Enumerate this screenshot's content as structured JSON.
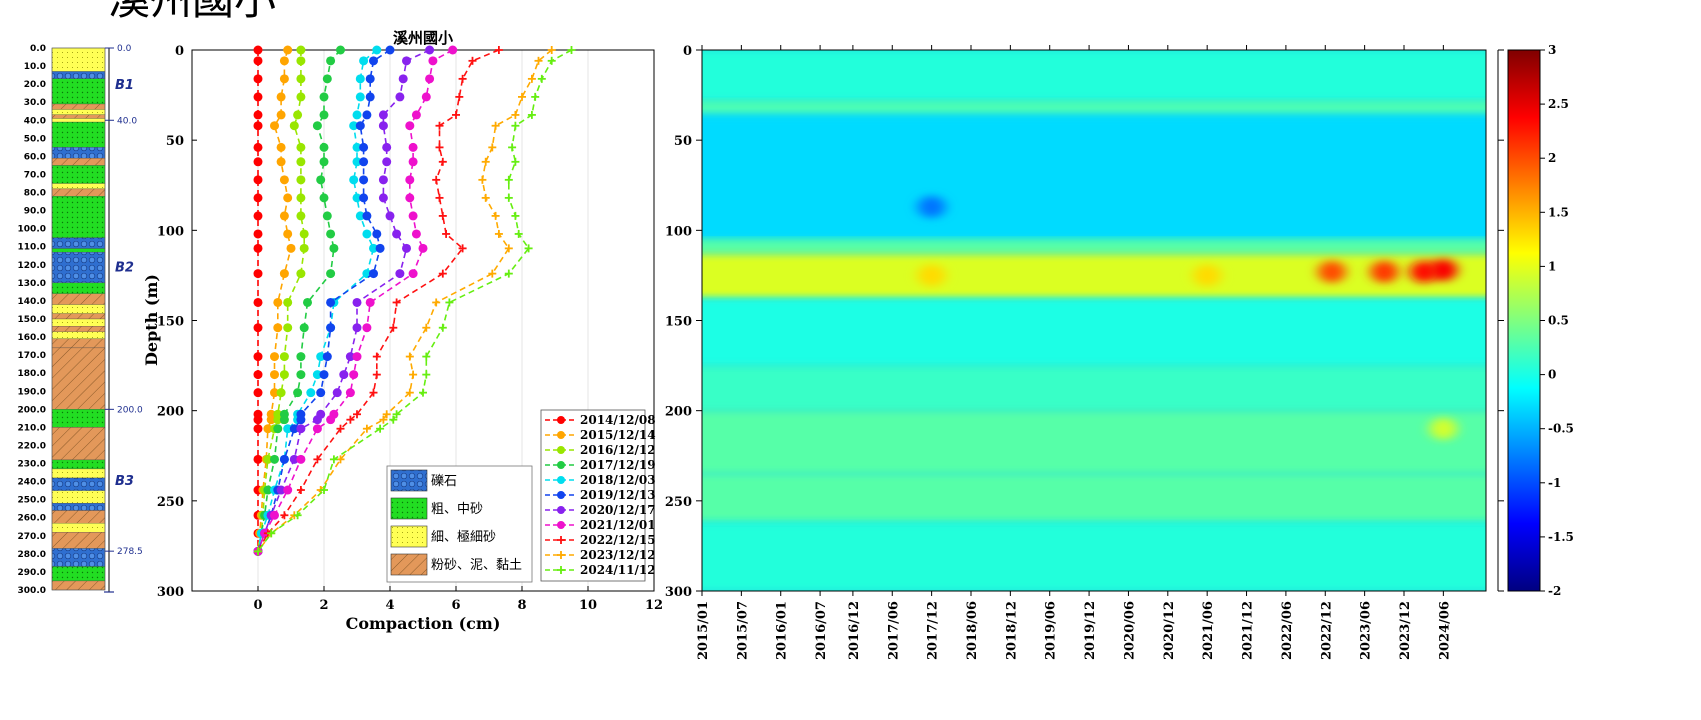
{
  "page_title": "溪州國小",
  "chart_data": [
    {
      "type": "strip_log",
      "name": "borehole-lithology",
      "depth_ticks": [
        "0.0",
        "10.0",
        "20.0",
        "30.0",
        "40.0",
        "50.0",
        "60.0",
        "70.0",
        "80.0",
        "90.0",
        "100.0",
        "110.0",
        "120.0",
        "130.0",
        "140.0",
        "150.0",
        "160.0",
        "170.0",
        "180.0",
        "190.0",
        "200.0",
        "210.0",
        "220.0",
        "230.0",
        "240.0",
        "250.0",
        "260.0",
        "270.0",
        "280.0",
        "290.0",
        "300.0"
      ],
      "depth_range": [
        0,
        300
      ],
      "layers": [
        {
          "top": 0,
          "bottom": 13,
          "lith": "fine"
        },
        {
          "top": 13,
          "bottom": 17,
          "lith": "gravel"
        },
        {
          "top": 17,
          "bottom": 31,
          "lith": "coarse"
        },
        {
          "top": 31,
          "bottom": 34,
          "lith": "silt"
        },
        {
          "top": 34,
          "bottom": 37,
          "lith": "fine"
        },
        {
          "top": 37,
          "bottom": 39,
          "lith": "silt"
        },
        {
          "top": 39,
          "bottom": 41,
          "lith": "fine"
        },
        {
          "top": 41,
          "bottom": 55,
          "lith": "coarse"
        },
        {
          "top": 55,
          "bottom": 61,
          "lith": "gravel"
        },
        {
          "top": 61,
          "bottom": 65,
          "lith": "silt"
        },
        {
          "top": 65,
          "bottom": 75,
          "lith": "coarse"
        },
        {
          "top": 75,
          "bottom": 78,
          "lith": "fine"
        },
        {
          "top": 78,
          "bottom": 82,
          "lith": "silt"
        },
        {
          "top": 82,
          "bottom": 105,
          "lith": "coarse"
        },
        {
          "top": 105,
          "bottom": 111,
          "lith": "gravel"
        },
        {
          "top": 111,
          "bottom": 113,
          "lith": "coarse"
        },
        {
          "top": 113,
          "bottom": 130,
          "lith": "gravel"
        },
        {
          "top": 130,
          "bottom": 136,
          "lith": "coarse"
        },
        {
          "top": 136,
          "bottom": 142,
          "lith": "silt"
        },
        {
          "top": 142,
          "bottom": 147,
          "lith": "fine"
        },
        {
          "top": 147,
          "bottom": 150,
          "lith": "silt"
        },
        {
          "top": 150,
          "bottom": 154,
          "lith": "fine"
        },
        {
          "top": 154,
          "bottom": 157,
          "lith": "silt"
        },
        {
          "top": 157,
          "bottom": 161,
          "lith": "fine"
        },
        {
          "top": 161,
          "bottom": 166,
          "lith": "silt"
        },
        {
          "top": 166,
          "bottom": 200,
          "lith": "silt"
        },
        {
          "top": 200,
          "bottom": 210,
          "lith": "coarse"
        },
        {
          "top": 210,
          "bottom": 228,
          "lith": "silt"
        },
        {
          "top": 228,
          "bottom": 233,
          "lith": "coarse"
        },
        {
          "top": 233,
          "bottom": 238,
          "lith": "fine"
        },
        {
          "top": 238,
          "bottom": 245,
          "lith": "gravel"
        },
        {
          "top": 245,
          "bottom": 252,
          "lith": "fine"
        },
        {
          "top": 252,
          "bottom": 256,
          "lith": "gravel"
        },
        {
          "top": 256,
          "bottom": 263,
          "lith": "silt"
        },
        {
          "top": 263,
          "bottom": 268,
          "lith": "fine"
        },
        {
          "top": 268,
          "bottom": 277,
          "lith": "silt"
        },
        {
          "top": 277,
          "bottom": 287,
          "lith": "gravel"
        },
        {
          "top": 287,
          "bottom": 295,
          "lith": "coarse"
        },
        {
          "top": 295,
          "bottom": 300,
          "lith": "silt"
        }
      ],
      "units": [
        {
          "label": "B1",
          "depth": 20
        },
        {
          "label": "B2",
          "depth": 121
        },
        {
          "label": "B3",
          "depth": 239
        }
      ],
      "boundaries": [
        "0.0",
        "40.0",
        "200.0",
        "278.5"
      ],
      "boundary_depths": [
        0,
        40,
        200,
        278.5
      ]
    },
    {
      "type": "line",
      "name": "compaction-profile",
      "title": "溪州國小",
      "xlabel": "Compaction (cm)",
      "ylabel": "Depth (m)",
      "xlim": [
        -2,
        12
      ],
      "ylim": [
        0,
        300
      ],
      "y_inverted": true,
      "x_ticks": [
        "0",
        "2",
        "4",
        "6",
        "8",
        "10",
        "12"
      ],
      "y_ticks": [
        "0",
        "50",
        "100",
        "150",
        "200",
        "250",
        "300"
      ],
      "depths": [
        0,
        6,
        16,
        26,
        36,
        42,
        54,
        62,
        72,
        82,
        92,
        102,
        110,
        124,
        140,
        154,
        170,
        180,
        190,
        202,
        205,
        210,
        227,
        244,
        258,
        268,
        278
      ],
      "series": [
        {
          "name": "2014/12/08",
          "color": "#ff0000",
          "marker": "dot",
          "values": [
            0,
            0,
            0,
            0,
            0,
            0,
            0,
            0,
            0,
            0,
            0,
            0,
            0,
            0,
            0,
            0,
            0,
            0,
            0,
            0,
            0,
            0,
            0,
            0,
            0,
            0,
            0
          ]
        },
        {
          "name": "2015/12/14",
          "color": "#ffa500",
          "marker": "dot",
          "values": [
            0.9,
            0.8,
            0.8,
            0.7,
            0.7,
            0.5,
            0.7,
            0.7,
            0.8,
            0.9,
            0.8,
            0.9,
            1.0,
            0.8,
            0.6,
            0.6,
            0.5,
            0.5,
            0.5,
            0.4,
            0.4,
            0.3,
            0.25,
            0.15,
            0.1,
            0.05,
            0
          ]
        },
        {
          "name": "2016/12/12",
          "color": "#99e600",
          "marker": "dot",
          "values": [
            1.3,
            1.3,
            1.3,
            1.3,
            1.2,
            1.1,
            1.3,
            1.3,
            1.3,
            1.3,
            1.3,
            1.4,
            1.4,
            1.3,
            0.9,
            0.9,
            0.8,
            0.8,
            0.7,
            0.6,
            0.6,
            0.5,
            0.3,
            0.2,
            0.15,
            0.1,
            0
          ]
        },
        {
          "name": "2017/12/19",
          "color": "#22cc44",
          "marker": "dot",
          "values": [
            2.5,
            2.2,
            2.1,
            2.0,
            2.0,
            1.8,
            2.0,
            2.0,
            1.9,
            2.0,
            2.1,
            2.2,
            2.3,
            2.2,
            1.5,
            1.4,
            1.3,
            1.3,
            1.2,
            0.8,
            0.8,
            0.6,
            0.5,
            0.3,
            0.2,
            0.1,
            0
          ]
        },
        {
          "name": "2018/12/03",
          "color": "#00ddee",
          "marker": "dot",
          "values": [
            3.6,
            3.2,
            3.1,
            3.1,
            3.0,
            2.9,
            3.0,
            3.0,
            2.9,
            3.0,
            3.1,
            3.3,
            3.5,
            3.3,
            2.3,
            2.2,
            1.9,
            1.8,
            1.6,
            1.2,
            1.2,
            0.9,
            0.8,
            0.5,
            0.3,
            0.1,
            0
          ]
        },
        {
          "name": "2019/12/13",
          "color": "#1144ee",
          "marker": "dot",
          "values": [
            4.0,
            3.5,
            3.4,
            3.4,
            3.3,
            3.1,
            3.2,
            3.2,
            3.2,
            3.2,
            3.3,
            3.6,
            3.7,
            3.5,
            2.2,
            2.2,
            2.1,
            2.0,
            1.9,
            1.3,
            1.3,
            1.1,
            0.8,
            0.6,
            0.4,
            0.2,
            0
          ]
        },
        {
          "name": "2020/12/17",
          "color": "#8822ee",
          "marker": "dot",
          "values": [
            5.2,
            4.5,
            4.4,
            4.3,
            3.8,
            3.8,
            3.9,
            3.9,
            3.8,
            3.8,
            4.0,
            4.2,
            4.5,
            4.3,
            3.0,
            3.0,
            2.8,
            2.6,
            2.4,
            1.9,
            1.8,
            1.3,
            1.1,
            0.7,
            0.4,
            0.2,
            0
          ]
        },
        {
          "name": "2021/12/01",
          "color": "#ee11cc",
          "marker": "dot",
          "values": [
            5.9,
            5.3,
            5.2,
            5.1,
            4.8,
            4.6,
            4.7,
            4.7,
            4.6,
            4.6,
            4.7,
            4.8,
            5.0,
            4.7,
            3.4,
            3.3,
            3.0,
            2.9,
            2.8,
            2.3,
            2.2,
            1.8,
            1.3,
            0.9,
            0.5,
            0.2,
            0
          ]
        },
        {
          "name": "2022/12/15",
          "color": "#ff1111",
          "marker": "plus",
          "values": [
            7.3,
            6.5,
            6.2,
            6.1,
            6.0,
            5.5,
            5.5,
            5.6,
            5.4,
            5.5,
            5.6,
            5.7,
            6.2,
            5.6,
            4.2,
            4.1,
            3.6,
            3.6,
            3.5,
            3.0,
            2.8,
            2.5,
            1.8,
            1.3,
            0.8,
            0.3,
            0
          ]
        },
        {
          "name": "2023/12/12",
          "color": "#ffaa00",
          "marker": "plus",
          "values": [
            8.9,
            8.5,
            8.3,
            8.0,
            7.8,
            7.2,
            7.1,
            6.9,
            6.8,
            6.9,
            7.2,
            7.3,
            7.6,
            7.1,
            5.4,
            5.1,
            4.6,
            4.7,
            4.6,
            3.9,
            3.8,
            3.3,
            2.5,
            1.9,
            1.1,
            0.4,
            0
          ]
        },
        {
          "name": "2024/11/12",
          "color": "#66ee11",
          "marker": "plus",
          "values": [
            9.5,
            8.9,
            8.6,
            8.4,
            8.3,
            7.8,
            7.7,
            7.8,
            7.6,
            7.6,
            7.8,
            7.9,
            8.2,
            7.6,
            5.8,
            5.6,
            5.1,
            5.1,
            5.0,
            4.2,
            4.1,
            3.7,
            2.3,
            2.0,
            1.2,
            0.4,
            0
          ]
        }
      ],
      "legend_position": "bottom-right",
      "lithology_legend": [
        {
          "key": "gravel",
          "label": "礫石"
        },
        {
          "key": "coarse",
          "label": "粗、中砂"
        },
        {
          "key": "fine",
          "label": "細、極細砂"
        },
        {
          "key": "silt",
          "label": "粉砂、泥、黏土"
        }
      ]
    },
    {
      "type": "heatmap",
      "name": "compaction-rate-heatmap",
      "ylim": [
        0,
        300
      ],
      "y_inverted": true,
      "y_ticks": [
        "0",
        "50",
        "100",
        "150",
        "200",
        "250",
        "300"
      ],
      "x_ticks": [
        "2015/01",
        "2015/07",
        "2016/01",
        "2016/07",
        "2016/12",
        "2017/06",
        "2017/12",
        "2018/06",
        "2018/12",
        "2019/06",
        "2019/12",
        "2020/06",
        "2020/12",
        "2021/06",
        "2021/12",
        "2022/06",
        "2022/12",
        "2023/06",
        "2023/12",
        "2024/06"
      ],
      "colorbar_range": [
        -2,
        3
      ],
      "colorbar_ticks": [
        "3",
        "2.5",
        "2",
        "1.5",
        "1",
        "0.5",
        "0",
        "-0.5",
        "-1",
        "-1.5",
        "-2"
      ],
      "depth_bands": [
        {
          "from": 0,
          "to": 28,
          "value": 0.05
        },
        {
          "from": 28,
          "to": 36,
          "value": 0.25
        },
        {
          "from": 36,
          "to": 105,
          "value": -0.3
        },
        {
          "from": 105,
          "to": 113,
          "value": 0.3
        },
        {
          "from": 113,
          "to": 138,
          "value": 0.95
        },
        {
          "from": 138,
          "to": 175,
          "value": 0.0
        },
        {
          "from": 175,
          "to": 200,
          "value": 0.15
        },
        {
          "from": 200,
          "to": 235,
          "value": 0.3
        },
        {
          "from": 235,
          "to": 262,
          "value": 0.3
        },
        {
          "from": 262,
          "to": 300,
          "value": 0.05
        }
      ],
      "hotspots": [
        {
          "time": "2017/12",
          "depth": 125,
          "value": 1.3
        },
        {
          "time": "2021/06",
          "depth": 125,
          "value": 1.3
        },
        {
          "time": "2023/01",
          "depth": 123,
          "value": 2.0
        },
        {
          "time": "2023/09",
          "depth": 123,
          "value": 2.1
        },
        {
          "time": "2024/03",
          "depth": 123,
          "value": 2.3
        },
        {
          "time": "2024/06",
          "depth": 122,
          "value": 2.4
        },
        {
          "time": "2017/12",
          "depth": 87,
          "value": -0.8
        },
        {
          "time": "2024/06",
          "depth": 210,
          "value": 0.9
        }
      ]
    }
  ]
}
